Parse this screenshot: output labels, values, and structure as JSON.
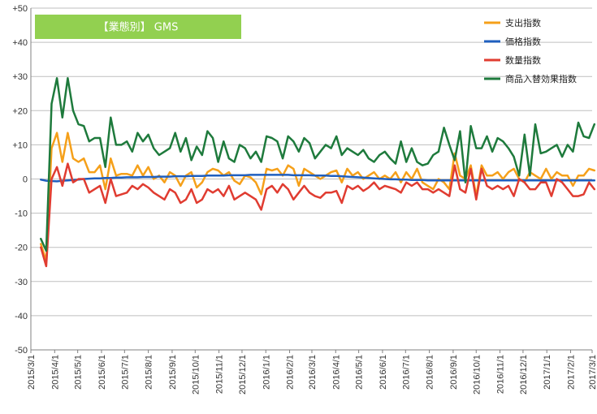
{
  "chart_data": {
    "type": "line",
    "title": "【業態別】 GMS",
    "title_bg_color": "#92d050",
    "xlabel": "",
    "ylabel": "",
    "ylim": [
      -50,
      50
    ],
    "y_ticks": [
      50,
      40,
      30,
      20,
      10,
      0,
      -10,
      -20,
      -30,
      -40,
      -50
    ],
    "y_tick_labels": [
      "+50",
      "+40",
      "+30",
      "+20",
      "+10",
      "0",
      "-10",
      "-20",
      "-30",
      "-40",
      "-50"
    ],
    "x_start": "2015-03-01",
    "x_end": "2017-03-01",
    "x_tick_labels": [
      "2015/3/1",
      "2015/4/1",
      "2015/5/1",
      "2015/6/1",
      "2015/7/1",
      "2015/8/1",
      "2015/9/1",
      "2015/10/1",
      "2015/11/1",
      "2015/12/1",
      "2016/1/1",
      "2016/2/1",
      "2016/3/1",
      "2016/4/1",
      "2016/5/1",
      "2016/6/1",
      "2016/7/1",
      "2016/8/1",
      "2016/9/1",
      "2016/10/1",
      "2016/11/1",
      "2016/12/1",
      "2017/1/1",
      "2017/2/1",
      "2017/3/1"
    ],
    "grid": true,
    "legend_position": "top-right",
    "x": [
      "2015-03-14",
      "2015-03-21",
      "2015-03-28",
      "2015-04-04",
      "2015-04-11",
      "2015-04-18",
      "2015-04-25",
      "2015-05-02",
      "2015-05-09",
      "2015-05-16",
      "2015-05-23",
      "2015-05-30",
      "2015-06-06",
      "2015-06-13",
      "2015-06-20",
      "2015-06-27",
      "2015-07-04",
      "2015-07-11",
      "2015-07-18",
      "2015-07-25",
      "2015-08-01",
      "2015-08-08",
      "2015-08-15",
      "2015-08-22",
      "2015-08-29",
      "2015-09-05",
      "2015-09-12",
      "2015-09-19",
      "2015-09-26",
      "2015-10-03",
      "2015-10-10",
      "2015-10-17",
      "2015-10-24",
      "2015-10-31",
      "2015-11-07",
      "2015-11-14",
      "2015-11-21",
      "2015-11-28",
      "2015-12-05",
      "2015-12-12",
      "2015-12-19",
      "2015-12-26",
      "2016-01-02",
      "2016-01-09",
      "2016-01-16",
      "2016-01-23",
      "2016-01-30",
      "2016-02-06",
      "2016-02-13",
      "2016-02-20",
      "2016-02-27",
      "2016-03-05",
      "2016-03-12",
      "2016-03-19",
      "2016-03-26",
      "2016-04-02",
      "2016-04-09",
      "2016-04-16",
      "2016-04-23",
      "2016-04-30",
      "2016-05-07",
      "2016-05-14",
      "2016-05-21",
      "2016-05-28",
      "2016-06-04",
      "2016-06-11",
      "2016-06-18",
      "2016-06-25",
      "2016-07-02",
      "2016-07-09",
      "2016-07-16",
      "2016-07-23",
      "2016-07-30",
      "2016-08-06",
      "2016-08-13",
      "2016-08-20",
      "2016-08-27",
      "2016-09-03",
      "2016-09-10",
      "2016-09-17",
      "2016-09-24",
      "2016-10-01",
      "2016-10-08",
      "2016-10-15",
      "2016-10-22",
      "2016-10-29",
      "2016-11-05",
      "2016-11-12",
      "2016-11-19",
      "2016-11-26",
      "2016-12-03",
      "2016-12-10",
      "2016-12-17",
      "2016-12-24",
      "2016-12-31",
      "2017-01-07",
      "2017-01-14",
      "2017-01-21",
      "2017-01-28",
      "2017-02-04",
      "2017-02-11",
      "2017-02-18",
      "2017-02-25",
      "2017-03-04"
    ],
    "series": [
      {
        "name": "支出指数",
        "color": "#f5a01a",
        "values": [
          -19,
          -24,
          9,
          13.5,
          5,
          13.5,
          6,
          5,
          6,
          2,
          2,
          4,
          -3,
          6,
          1,
          1.5,
          1.5,
          1,
          4,
          1,
          3.5,
          0,
          1,
          -1,
          2,
          1,
          -2,
          1,
          2,
          -2.5,
          -1,
          2,
          3,
          2.5,
          1,
          2,
          -0.5,
          -1.5,
          1,
          0.5,
          -1,
          -4.5,
          3,
          2.5,
          3,
          1,
          4,
          3,
          -2,
          3,
          2,
          1,
          0,
          1,
          2,
          2.5,
          -1,
          3,
          1,
          2,
          0,
          1,
          2,
          0,
          1,
          0,
          2,
          -1,
          2,
          0,
          3,
          -1,
          -2,
          -3,
          0,
          -1,
          -3,
          7.5,
          1,
          0,
          4,
          -5,
          4,
          1,
          1,
          2,
          0,
          2,
          3,
          0,
          -1,
          2,
          1,
          0,
          3,
          0,
          2,
          1,
          1,
          -2,
          1,
          1,
          3,
          2.5
        ]
      },
      {
        "name": "価格指数",
        "color": "#1f5fbf",
        "values": [
          -0.2,
          -0.5,
          -0.6,
          -0.7,
          -0.5,
          -0.4,
          -0.3,
          -0.2,
          0,
          0.1,
          0.2,
          0.2,
          0.3,
          0.3,
          0.4,
          0.4,
          0.5,
          0.5,
          0.5,
          0.6,
          0.6,
          0.6,
          0.7,
          0.7,
          0.7,
          0.8,
          0.8,
          0.8,
          0.9,
          0.9,
          0.9,
          1,
          1,
          1,
          1,
          1.1,
          1.1,
          1.1,
          1.1,
          1.2,
          1.2,
          1.2,
          1.2,
          1.2,
          1.2,
          1.2,
          1.2,
          1.1,
          1.1,
          1.1,
          1.1,
          1,
          1,
          1,
          0.9,
          0.9,
          0.8,
          0.7,
          0.6,
          0.5,
          0.4,
          0.3,
          0.2,
          0.1,
          0,
          -0.1,
          -0.1,
          -0.2,
          -0.2,
          -0.3,
          -0.3,
          -0.3,
          -0.4,
          -0.4,
          -0.4,
          -0.4,
          -0.4,
          -0.4,
          -0.4,
          -0.4,
          -0.4,
          -0.4,
          -0.4,
          -0.4,
          -0.4,
          -0.4,
          -0.4,
          -0.4,
          -0.4,
          -0.4,
          -0.4,
          -0.4,
          -0.4,
          -0.4,
          -0.4,
          -0.4,
          -0.4,
          -0.4,
          -0.4,
          -0.4,
          -0.4,
          -0.4,
          -0.4,
          -0.4
        ]
      },
      {
        "name": "数量指数",
        "color": "#e03c31",
        "values": [
          -20,
          -25.5,
          0,
          3.5,
          -2,
          4.5,
          -1,
          0,
          0,
          -4,
          -3,
          -2,
          -7,
          0,
          -5,
          -4.5,
          -4,
          -2,
          -3,
          -1.5,
          -2.5,
          -4,
          -5,
          -6,
          -3,
          -4,
          -7,
          -6,
          -3,
          -7,
          -6,
          -3,
          -4,
          -3,
          -5,
          -2,
          -6,
          -5,
          -4,
          -5,
          -6,
          -9,
          -3,
          -2,
          -4,
          -1.5,
          -3,
          -6,
          -4,
          -2,
          -4,
          -5,
          -5.5,
          -4,
          -4,
          -3.5,
          -7,
          -2,
          -3,
          -2,
          -3.5,
          -2.5,
          -1,
          -3,
          -2,
          -2.5,
          -3,
          -4,
          -1,
          -2,
          -1,
          -3,
          -3,
          -4,
          -3,
          -4,
          -5,
          4,
          -3,
          -4,
          3,
          -6,
          3,
          -2,
          -3,
          -2,
          -3,
          -2,
          -5,
          0,
          -1,
          -3,
          -3,
          -1,
          -1,
          -5,
          0,
          -1,
          -3,
          -5,
          -5,
          -4.5,
          -1,
          -3
        ]
      },
      {
        "name": "商品入替効果指数",
        "color": "#1e7a3c",
        "values": [
          -17.5,
          -21,
          22,
          29.5,
          18,
          29.5,
          20,
          16,
          15.5,
          11,
          12,
          12,
          3.5,
          18,
          10,
          10,
          11,
          8,
          13.5,
          11,
          13,
          9,
          7,
          8,
          9,
          13.5,
          8,
          12,
          5.5,
          9.5,
          7,
          14,
          12,
          5,
          11,
          6,
          5,
          10,
          9,
          6,
          8,
          5,
          12.5,
          12,
          11,
          6,
          12.5,
          11,
          8,
          12,
          10.5,
          6,
          8,
          10,
          9,
          12.5,
          7,
          9,
          8,
          7,
          8.5,
          6,
          5,
          7,
          8,
          6,
          4.5,
          11,
          5,
          9,
          5,
          4,
          4.5,
          7,
          8,
          15,
          10,
          5.5,
          14,
          -1,
          15.5,
          9,
          9,
          12.5,
          8,
          12,
          11,
          9,
          6.5,
          1,
          13,
          1,
          16,
          7.5,
          8,
          9,
          10,
          6.5,
          10,
          8,
          16.5,
          12.5,
          12,
          16
        ]
      }
    ]
  }
}
